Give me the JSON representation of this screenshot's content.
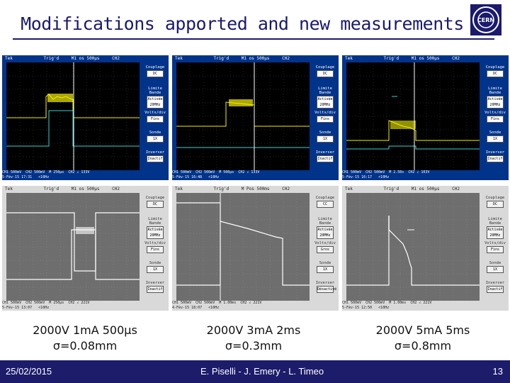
{
  "title": "Modifications apported and new measurements",
  "scopes": [
    {
      "brand": "Tek",
      "trig": "Trig'd",
      "time": "M1 os 500µs",
      "ch": "CH2",
      "menu": [
        "Couplage",
        "DC",
        "Limite Bande",
        "Activée 20MHz",
        "Volts/div",
        "Fins",
        "Sonde",
        "1X",
        "Inverser",
        "Inactif"
      ],
      "bottom": "CH1 500mV  CH2 500mV  M 250µs  CH2 ∠ 133V\n5-Fév-15 17:31   <10Hz"
    },
    {
      "brand": "Tek",
      "trig": "Trig'd",
      "time": "M1 os 500µs",
      "ch": "CH2",
      "menu": [
        "Couplage",
        "DC",
        "Limite Bande",
        "Activée 20MHz",
        "Volts/div",
        "Fins",
        "Sonde",
        "1X",
        "Inverser",
        "Inactif"
      ],
      "bottom": "CH1 500mV  CH2 500mV  M 500µs  CH2 ∠ 133V\n5-Fév-15 16:48   <10Hz"
    },
    {
      "brand": "Tek",
      "trig": "Trig'd",
      "time": "M1 os 500µs",
      "ch": "CH2",
      "menu": [
        "Couplage",
        "DC",
        "Limite Bande",
        "Activée 20MHz",
        "Volts/div",
        "Fins",
        "Sonde",
        "1X",
        "Inverser",
        "Inactif"
      ],
      "bottom": "CH1 500mV  CH2 500mV  M 2.50s  CH2 ∠ 103V\n5-Fév-15 16:17   <10Hz"
    },
    {
      "brand": "Tek",
      "trig": "Trig'd",
      "time": "M1 os 500µs",
      "ch": "CH2",
      "menu": [
        "Couplage",
        "DC",
        "Limite Bande",
        "Activée 20MHz",
        "Volts/div",
        "Fins",
        "Sonde",
        "1X",
        "Inverser",
        "Inactif"
      ],
      "bottom": "CH1 500mV  CH2 500mV  M 250µs  CH2 ∠ 221V\n5-Fév-15 13:07   <10Hz"
    },
    {
      "brand": "Tek",
      "trig": "Trig'd",
      "time": "M Pos 500ms",
      "ch": "CH2",
      "menu": [
        "Couplage",
        "CC",
        "Limite Bande",
        "Activée 20MHz",
        "Volts/div",
        "Gros",
        "Sonde",
        "1X",
        "Inverser",
        "Désactivé"
      ],
      "bottom": "CH1 500mV  CH2 500mV  M 1.00ms  CH2 ∠ 221V\n4-Fév-15 18:07   <10Hz"
    },
    {
      "brand": "Tek",
      "trig": "Trig'd",
      "time": "M1 os 500µs",
      "ch": "CH2",
      "menu": [
        "Couplage",
        "DC",
        "Limite Bande",
        "Activée 20MHz",
        "Volts/div",
        "Fins",
        "Sonde",
        "1X",
        "Inverser",
        "Inactif"
      ],
      "bottom": "CH1 500mV  CH2 500mV  M 1.00ms  CH2 ∠ 221V\n5-Fév-15 12:50   <10Hz"
    }
  ],
  "captions": [
    {
      "line1": "2000V   1mA  500µs",
      "line2": "σ=0.08mm"
    },
    {
      "line1": "2000V   3mA  2ms",
      "line2": "σ=0.3mm"
    },
    {
      "line1": "2000V   5mA  5ms",
      "line2": "σ=0.8mm"
    }
  ],
  "footer": {
    "date": "25/02/2015",
    "authors": "E. Piselli  - J. Emery - L. Timeo",
    "page": "13"
  },
  "colors": {
    "title": "#1a1a6e",
    "footer_bg": "#1c1c6b",
    "scope_blue": "#00338a",
    "trace_yellow": "#f5f000",
    "trace_cyan": "#40d0d0"
  }
}
